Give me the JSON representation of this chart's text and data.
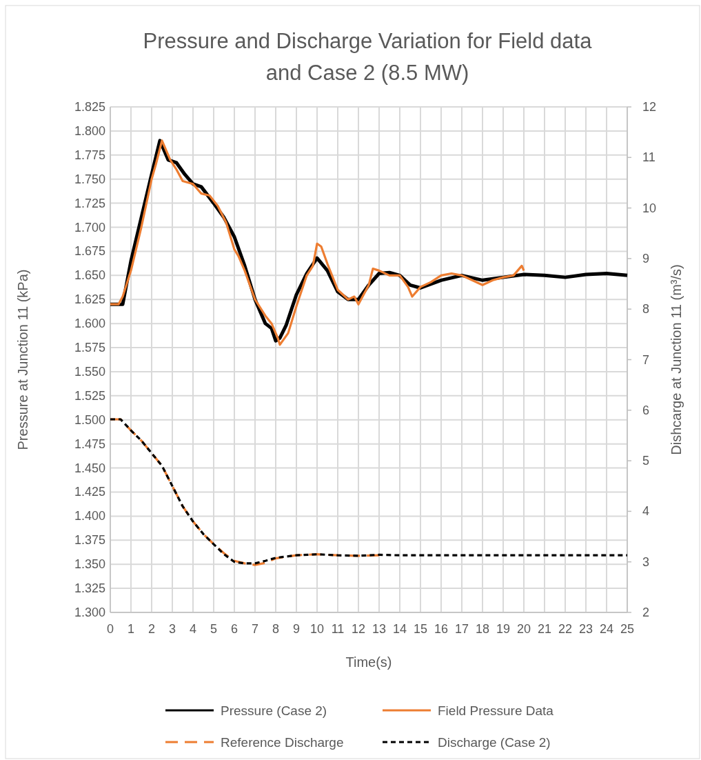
{
  "chart_data": {
    "type": "line",
    "title": "Pressure and Discharge Variation for Field data and Case 2 (8.5 MW)",
    "xlabel": "Time(s)",
    "ylabel": "Pressure at Junction 11 (kPa)",
    "y2label": "Dishcarge at Junction 11 (m³/s)",
    "xlim": [
      0,
      25
    ],
    "xticks": [
      0,
      1,
      2,
      3,
      4,
      5,
      6,
      7,
      8,
      9,
      10,
      11,
      12,
      13,
      14,
      15,
      16,
      17,
      18,
      19,
      20,
      21,
      22,
      23,
      24,
      25
    ],
    "ylim": [
      1.3,
      1.825
    ],
    "yticks": [
      {
        "value": 1.3,
        "label": "1.300"
      },
      {
        "value": 1.325,
        "label": "1.325"
      },
      {
        "value": 1.35,
        "label": "1.350"
      },
      {
        "value": 1.375,
        "label": "1.375"
      },
      {
        "value": 1.4,
        "label": "1.400"
      },
      {
        "value": 1.425,
        "label": "1.425"
      },
      {
        "value": 1.45,
        "label": "1.450"
      },
      {
        "value": 1.475,
        "label": "1.475"
      },
      {
        "value": 1.5,
        "label": "1.500"
      },
      {
        "value": 1.525,
        "label": "1.525"
      },
      {
        "value": 1.55,
        "label": "1.550"
      },
      {
        "value": 1.575,
        "label": "1.575"
      },
      {
        "value": 1.6,
        "label": "1.600"
      },
      {
        "value": 1.625,
        "label": "1.625"
      },
      {
        "value": 1.65,
        "label": "1.650"
      },
      {
        "value": 1.675,
        "label": "1.675"
      },
      {
        "value": 1.7,
        "label": "1.700"
      },
      {
        "value": 1.725,
        "label": "1.725"
      },
      {
        "value": 1.75,
        "label": "1.750"
      },
      {
        "value": 1.775,
        "label": "1.775"
      },
      {
        "value": 1.8,
        "label": "1.800"
      },
      {
        "value": 1.825,
        "label": "1.825"
      }
    ],
    "y2lim": [
      2,
      12
    ],
    "y2ticks": [
      2,
      3,
      4,
      5,
      6,
      7,
      8,
      9,
      10,
      11,
      12
    ],
    "grid": true,
    "legend": "bottom",
    "series": [
      {
        "name": "Pressure (Case 2)",
        "color": "#000000",
        "line_style": "solid",
        "x": [
          0,
          0.5,
          0.6,
          1,
          1.5,
          2,
          2.4,
          2.8,
          3.2,
          3.6,
          4,
          4.4,
          5,
          5.5,
          6,
          6.5,
          7,
          7.5,
          7.8,
          8,
          8.2,
          8.5,
          9,
          9.5,
          10,
          10.5,
          11,
          11.5,
          12,
          12.5,
          13,
          13.5,
          14,
          14.5,
          15,
          16,
          17,
          18,
          19,
          20,
          21,
          22,
          23,
          24,
          25
        ],
        "values": [
          1.62,
          1.62,
          1.62,
          1.665,
          1.71,
          1.755,
          1.79,
          1.77,
          1.767,
          1.755,
          1.745,
          1.742,
          1.725,
          1.71,
          1.69,
          1.66,
          1.625,
          1.6,
          1.595,
          1.582,
          1.585,
          1.598,
          1.63,
          1.652,
          1.668,
          1.655,
          1.633,
          1.625,
          1.625,
          1.64,
          1.652,
          1.653,
          1.65,
          1.64,
          1.637,
          1.645,
          1.65,
          1.645,
          1.648,
          1.651,
          1.65,
          1.648,
          1.651,
          1.652,
          1.65
        ]
      },
      {
        "name": "Field Pressure Data",
        "color": "#ed7d31",
        "line_style": "solid",
        "x": [
          0,
          0.4,
          0.6,
          1,
          1.5,
          2,
          2.2,
          2.5,
          2.9,
          3.2,
          3.5,
          4,
          4.2,
          4.4,
          4.8,
          5.2,
          5.6,
          6,
          6.2,
          6.5,
          7,
          7.5,
          7.8,
          8.1,
          8.2,
          8.6,
          9,
          9.5,
          9.8,
          10,
          10.2,
          10.5,
          11,
          11.5,
          11.8,
          12,
          12.5,
          12.7,
          13,
          13.5,
          14,
          14.4,
          14.6,
          15,
          15.5,
          16,
          16.5,
          17,
          17.5,
          18,
          18.5,
          19,
          19.5,
          19.9,
          20
        ],
        "values": [
          1.62,
          1.62,
          1.628,
          1.655,
          1.7,
          1.75,
          1.765,
          1.79,
          1.77,
          1.76,
          1.748,
          1.745,
          1.74,
          1.735,
          1.733,
          1.722,
          1.705,
          1.677,
          1.67,
          1.655,
          1.625,
          1.608,
          1.6,
          1.585,
          1.578,
          1.59,
          1.618,
          1.65,
          1.66,
          1.683,
          1.68,
          1.662,
          1.635,
          1.625,
          1.628,
          1.62,
          1.64,
          1.657,
          1.655,
          1.65,
          1.65,
          1.638,
          1.628,
          1.638,
          1.643,
          1.65,
          1.652,
          1.65,
          1.645,
          1.64,
          1.645,
          1.648,
          1.65,
          1.66,
          1.655
        ]
      },
      {
        "name": "Reference Discharge",
        "color": "#ed7d31",
        "line_style": "dashed",
        "axis": "y2",
        "x": [
          0,
          0.5,
          1,
          1.5,
          2,
          2.5,
          3,
          3.5,
          4,
          4.5,
          5,
          5.5,
          6,
          6.5,
          7,
          7.5,
          8,
          9,
          10,
          11,
          12,
          13
        ],
        "values": [
          5.82,
          5.82,
          5.6,
          5.4,
          5.15,
          4.9,
          4.5,
          4.1,
          3.8,
          3.55,
          3.35,
          3.17,
          3.02,
          2.97,
          2.94,
          2.98,
          3.07,
          3.13,
          3.15,
          3.13,
          3.12,
          3.13
        ]
      },
      {
        "name": "Discharge (Case 2)",
        "color": "#000000",
        "line_style": "dotted",
        "axis": "y2",
        "x": [
          0,
          0.5,
          1,
          1.5,
          2,
          2.5,
          3,
          3.5,
          4,
          4.5,
          5,
          5.5,
          6,
          6.5,
          7,
          7.5,
          8,
          9,
          10,
          11,
          12,
          13,
          14,
          15,
          16,
          17,
          18,
          19,
          20,
          21,
          22,
          23,
          24,
          25
        ],
        "values": [
          5.82,
          5.82,
          5.6,
          5.4,
          5.15,
          4.9,
          4.5,
          4.1,
          3.8,
          3.55,
          3.35,
          3.15,
          3.0,
          2.97,
          2.97,
          3.02,
          3.08,
          3.13,
          3.15,
          3.13,
          3.12,
          3.14,
          3.13,
          3.13,
          3.13,
          3.13,
          3.13,
          3.13,
          3.13,
          3.13,
          3.13,
          3.13,
          3.13,
          3.13
        ]
      }
    ]
  }
}
